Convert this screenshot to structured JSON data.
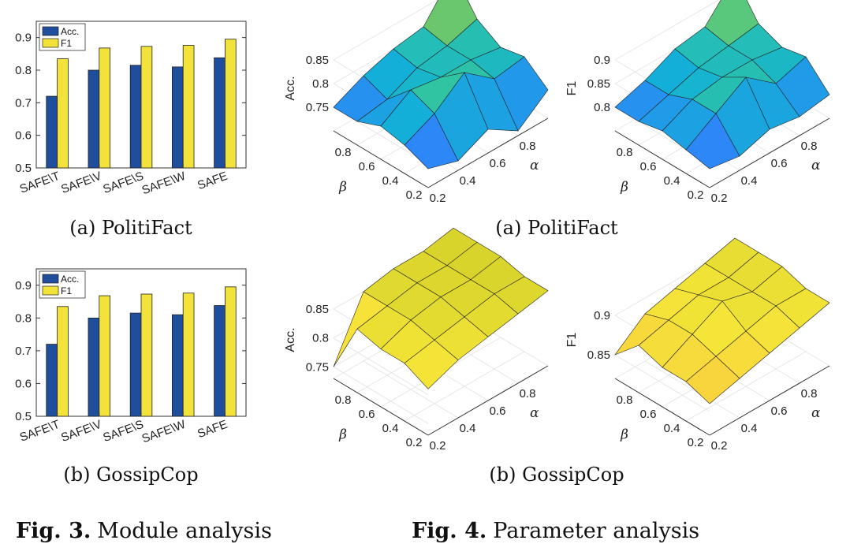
{
  "figure3": {
    "label": "Fig. 3.",
    "caption": "Module analysis",
    "panels": [
      {
        "caption": "(a) PolitiFact"
      },
      {
        "caption": "(b) GossipCop"
      }
    ]
  },
  "figure4": {
    "label": "Fig. 4.",
    "caption": "Parameter analysis",
    "panels": [
      {
        "caption": "(a) PolitiFact"
      },
      {
        "caption": "(b) GossipCop"
      }
    ]
  },
  "chart_data": [
    {
      "type": "bar",
      "panel": "(a) PolitiFact",
      "categories": [
        "SAFE\\T",
        "SAFE\\V",
        "SAFE\\S",
        "SAFE\\W",
        "SAFE"
      ],
      "series": [
        {
          "name": "Acc.",
          "color": "#1f4e9c",
          "values": [
            0.72,
            0.8,
            0.815,
            0.81,
            0.838
          ]
        },
        {
          "name": "F1",
          "color": "#f2e23a",
          "values": [
            0.835,
            0.868,
            0.873,
            0.876,
            0.895
          ]
        }
      ],
      "ylim": [
        0.5,
        0.95
      ],
      "yticks": [
        "0.5",
        "0.6",
        "0.7",
        "0.8",
        "0.9"
      ],
      "legend": "top-left",
      "xlabel": "",
      "ylabel": ""
    },
    {
      "type": "bar",
      "panel": "(b) GossipCop",
      "categories": [
        "SAFE\\T",
        "SAFE\\V",
        "SAFE\\S",
        "SAFE\\W",
        "SAFE"
      ],
      "series": [
        {
          "name": "Acc.",
          "color": "#1f4e9c",
          "values": [
            0.72,
            0.8,
            0.815,
            0.81,
            0.838
          ]
        },
        {
          "name": "F1",
          "color": "#f2e23a",
          "values": [
            0.835,
            0.868,
            0.873,
            0.876,
            0.895
          ]
        }
      ],
      "ylim": [
        0.5,
        0.95
      ],
      "yticks": [
        "0.5",
        "0.6",
        "0.7",
        "0.8",
        "0.9"
      ],
      "legend": "top-left",
      "xlabel": "",
      "ylabel": ""
    },
    {
      "type": "surface",
      "panel": "(a) PolitiFact",
      "metric": "Acc.",
      "x_label": "α",
      "y_label": "β",
      "x": [
        0.2,
        0.4,
        0.6,
        0.8,
        1.0
      ],
      "y": [
        0.2,
        0.4,
        0.6,
        0.8,
        1.0
      ],
      "xticks": [
        "0.2",
        "0.4",
        "0.6",
        "0.8"
      ],
      "yticks": [
        "0.2",
        "0.4",
        "0.6",
        "0.8"
      ],
      "zticks": [
        "0.75",
        "0.8",
        "0.85"
      ],
      "zlim": [
        0.7,
        0.9
      ],
      "colormap": "parula-cool",
      "z": [
        [
          0.74,
          0.72,
          0.75,
          0.71,
          0.76
        ],
        [
          0.76,
          0.79,
          0.84,
          0.79,
          0.8
        ],
        [
          0.77,
          0.81,
          0.8,
          0.8,
          0.79
        ],
        [
          0.75,
          0.76,
          0.79,
          0.8,
          0.82
        ],
        [
          0.75,
          0.78,
          0.8,
          0.81,
          0.89
        ]
      ]
    },
    {
      "type": "surface",
      "panel": "(a) PolitiFact",
      "metric": "F1",
      "x_label": "α",
      "y_label": "β",
      "x": [
        0.2,
        0.4,
        0.6,
        0.8,
        1.0
      ],
      "y": [
        0.2,
        0.4,
        0.6,
        0.8,
        1.0
      ],
      "xticks": [
        "0.2",
        "0.4",
        "0.6",
        "0.8"
      ],
      "yticks": [
        "0.2",
        "0.4",
        "0.6",
        "0.8"
      ],
      "zticks": [
        "0.8",
        "0.85",
        "0.9"
      ],
      "zlim": [
        0.75,
        0.95
      ],
      "colormap": "parula-cool",
      "z": [
        [
          0.79,
          0.78,
          0.8,
          0.79,
          0.8
        ],
        [
          0.8,
          0.84,
          0.88,
          0.83,
          0.85
        ],
        [
          0.81,
          0.84,
          0.85,
          0.85,
          0.84
        ],
        [
          0.8,
          0.82,
          0.84,
          0.85,
          0.86
        ],
        [
          0.8,
          0.82,
          0.85,
          0.86,
          0.93
        ]
      ]
    },
    {
      "type": "surface",
      "panel": "(b) GossipCop",
      "metric": "Acc.",
      "x_label": "α",
      "y_label": "β",
      "x": [
        0.2,
        0.4,
        0.6,
        0.8,
        1.0
      ],
      "y": [
        0.2,
        0.4,
        0.6,
        0.8,
        1.0
      ],
      "xticks": [
        "0.2",
        "0.4",
        "0.6",
        "0.8"
      ],
      "yticks": [
        "0.2",
        "0.4",
        "0.6",
        "0.8"
      ],
      "zticks": [
        "0.75",
        "0.8",
        "0.85"
      ],
      "zlim": [
        0.73,
        0.88
      ],
      "colormap": "parula-warm",
      "z": [
        [
          0.81,
          0.83,
          0.84,
          0.85,
          0.86
        ],
        [
          0.83,
          0.84,
          0.85,
          0.86,
          0.86
        ],
        [
          0.83,
          0.85,
          0.86,
          0.86,
          0.87
        ],
        [
          0.84,
          0.85,
          0.86,
          0.86,
          0.87
        ],
        [
          0.75,
          0.85,
          0.86,
          0.86,
          0.87
        ]
      ]
    },
    {
      "type": "surface",
      "panel": "(b) GossipCop",
      "metric": "F1",
      "x_label": "α",
      "y_label": "β",
      "x": [
        0.2,
        0.4,
        0.6,
        0.8,
        1.0
      ],
      "y": [
        0.2,
        0.4,
        0.6,
        0.8,
        1.0
      ],
      "xticks": [
        "0.2",
        "0.4",
        "0.6",
        "0.8"
      ],
      "yticks": [
        "0.2",
        "0.4",
        "0.6",
        "0.8"
      ],
      "zticks": [
        "0.85",
        "0.9"
      ],
      "zlim": [
        0.82,
        0.93
      ],
      "colormap": "parula-warm",
      "z": [
        [
          0.86,
          0.87,
          0.88,
          0.89,
          0.9
        ],
        [
          0.87,
          0.88,
          0.89,
          0.9,
          0.9
        ],
        [
          0.87,
          0.89,
          0.91,
          0.9,
          0.91
        ],
        [
          0.88,
          0.89,
          0.9,
          0.9,
          0.91
        ],
        [
          0.85,
          0.88,
          0.89,
          0.9,
          0.91
        ]
      ]
    }
  ]
}
